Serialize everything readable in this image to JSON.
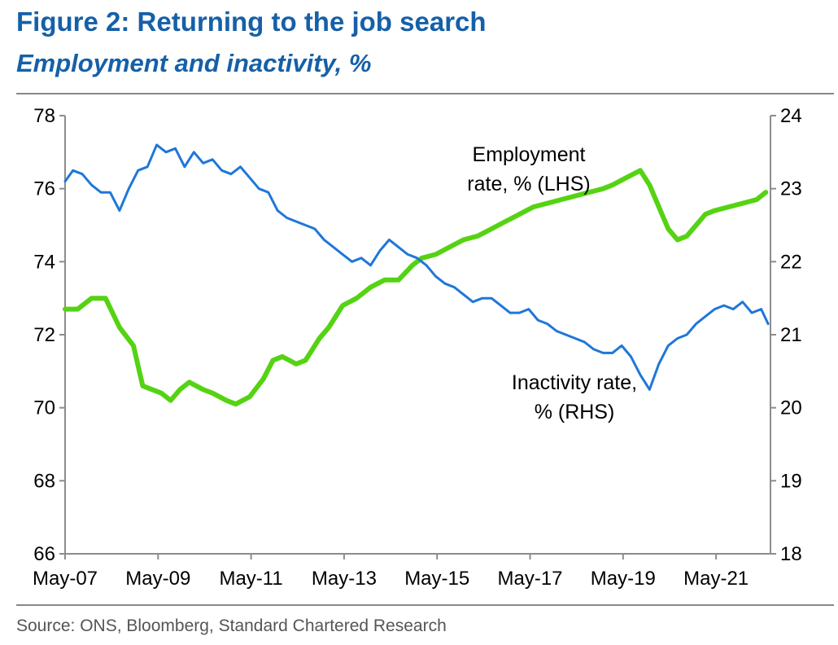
{
  "header": {
    "title": "Figure 2: Returning to the job search",
    "subtitle": "Employment and inactivity, %"
  },
  "footer": {
    "source": "Source: ONS, Bloomberg, Standard Chartered Research"
  },
  "colors": {
    "title": "#1560a8",
    "employment": "#55d313",
    "inactivity": "#1f77d8",
    "axis": "#8c8c8c"
  },
  "chart_data": {
    "type": "line",
    "title": "Figure 2: Returning to the job search",
    "subtitle": "Employment and inactivity, %",
    "x_tick_labels": [
      "May-07",
      "May-09",
      "May-11",
      "May-13",
      "May-15",
      "May-17",
      "May-19",
      "May-21"
    ],
    "x_tick_years": [
      2007.33,
      2009.33,
      2011.33,
      2013.33,
      2015.33,
      2017.33,
      2019.33,
      2021.33
    ],
    "x_range": [
      2007.33,
      2022.5
    ],
    "y_left": {
      "label": "LHS",
      "range": [
        66,
        78
      ],
      "ticks": [
        66,
        68,
        70,
        72,
        74,
        76,
        78
      ]
    },
    "y_right": {
      "label": "RHS",
      "range": [
        18,
        24
      ],
      "ticks": [
        18,
        19,
        20,
        21,
        22,
        23,
        24
      ]
    },
    "grid": false,
    "series": [
      {
        "name": "Employment rate, % (LHS)",
        "axis": "left",
        "label_lines": [
          "Employment",
          "rate, % (LHS)"
        ],
        "x": [
          2007.33,
          2007.6,
          2007.9,
          2008.2,
          2008.5,
          2008.8,
          2009.0,
          2009.2,
          2009.4,
          2009.6,
          2009.8,
          2010.0,
          2010.3,
          2010.5,
          2010.8,
          2011.0,
          2011.3,
          2011.6,
          2011.8,
          2012.0,
          2012.3,
          2012.5,
          2012.8,
          2013.0,
          2013.3,
          2013.6,
          2013.9,
          2014.2,
          2014.5,
          2014.8,
          2015.0,
          2015.3,
          2015.6,
          2015.9,
          2016.2,
          2016.5,
          2016.8,
          2017.1,
          2017.4,
          2017.7,
          2018.0,
          2018.3,
          2018.6,
          2018.9,
          2019.1,
          2019.4,
          2019.7,
          2019.9,
          2020.1,
          2020.3,
          2020.5,
          2020.7,
          2020.9,
          2021.1,
          2021.3,
          2021.6,
          2021.9,
          2022.2,
          2022.4
        ],
        "values": [
          72.7,
          72.7,
          73.0,
          73.0,
          72.2,
          71.7,
          70.6,
          70.5,
          70.4,
          70.2,
          70.5,
          70.7,
          70.5,
          70.4,
          70.2,
          70.1,
          70.3,
          70.8,
          71.3,
          71.4,
          71.2,
          71.3,
          71.9,
          72.2,
          72.8,
          73.0,
          73.3,
          73.5,
          73.5,
          73.9,
          74.1,
          74.2,
          74.4,
          74.6,
          74.7,
          74.9,
          75.1,
          75.3,
          75.5,
          75.6,
          75.7,
          75.8,
          75.9,
          76.0,
          76.1,
          76.3,
          76.5,
          76.1,
          75.5,
          74.9,
          74.6,
          74.7,
          75.0,
          75.3,
          75.4,
          75.5,
          75.6,
          75.7,
          75.9
        ]
      },
      {
        "name": "Inactivity rate, % (RHS)",
        "axis": "right",
        "label_lines": [
          "Inactivity rate,",
          "% (RHS)"
        ],
        "x": [
          2007.33,
          2007.5,
          2007.7,
          2007.9,
          2008.1,
          2008.3,
          2008.5,
          2008.7,
          2008.9,
          2009.1,
          2009.3,
          2009.5,
          2009.7,
          2009.9,
          2010.1,
          2010.3,
          2010.5,
          2010.7,
          2010.9,
          2011.1,
          2011.3,
          2011.5,
          2011.7,
          2011.9,
          2012.1,
          2012.3,
          2012.5,
          2012.7,
          2012.9,
          2013.1,
          2013.3,
          2013.5,
          2013.7,
          2013.9,
          2014.1,
          2014.3,
          2014.5,
          2014.7,
          2014.9,
          2015.1,
          2015.3,
          2015.5,
          2015.7,
          2015.9,
          2016.1,
          2016.3,
          2016.5,
          2016.7,
          2016.9,
          2017.1,
          2017.3,
          2017.5,
          2017.7,
          2017.9,
          2018.1,
          2018.3,
          2018.5,
          2018.7,
          2018.9,
          2019.1,
          2019.3,
          2019.5,
          2019.7,
          2019.9,
          2020.1,
          2020.3,
          2020.5,
          2020.7,
          2020.9,
          2021.1,
          2021.3,
          2021.5,
          2021.7,
          2021.9,
          2022.1,
          2022.3,
          2022.45
        ],
        "values": [
          23.1,
          23.25,
          23.2,
          23.05,
          22.95,
          22.95,
          22.7,
          23.0,
          23.25,
          23.3,
          23.6,
          23.5,
          23.55,
          23.3,
          23.5,
          23.35,
          23.4,
          23.25,
          23.2,
          23.3,
          23.15,
          23.0,
          22.95,
          22.7,
          22.6,
          22.55,
          22.5,
          22.45,
          22.3,
          22.2,
          22.1,
          22.0,
          22.05,
          21.95,
          22.15,
          22.3,
          22.2,
          22.1,
          22.05,
          21.95,
          21.8,
          21.7,
          21.65,
          21.55,
          21.45,
          21.5,
          21.5,
          21.4,
          21.3,
          21.3,
          21.35,
          21.2,
          21.15,
          21.05,
          21.0,
          20.95,
          20.9,
          20.8,
          20.75,
          20.75,
          20.85,
          20.7,
          20.45,
          20.25,
          20.6,
          20.85,
          20.95,
          21.0,
          21.15,
          21.25,
          21.35,
          21.4,
          21.35,
          21.45,
          21.3,
          21.35,
          21.15
        ]
      }
    ]
  }
}
